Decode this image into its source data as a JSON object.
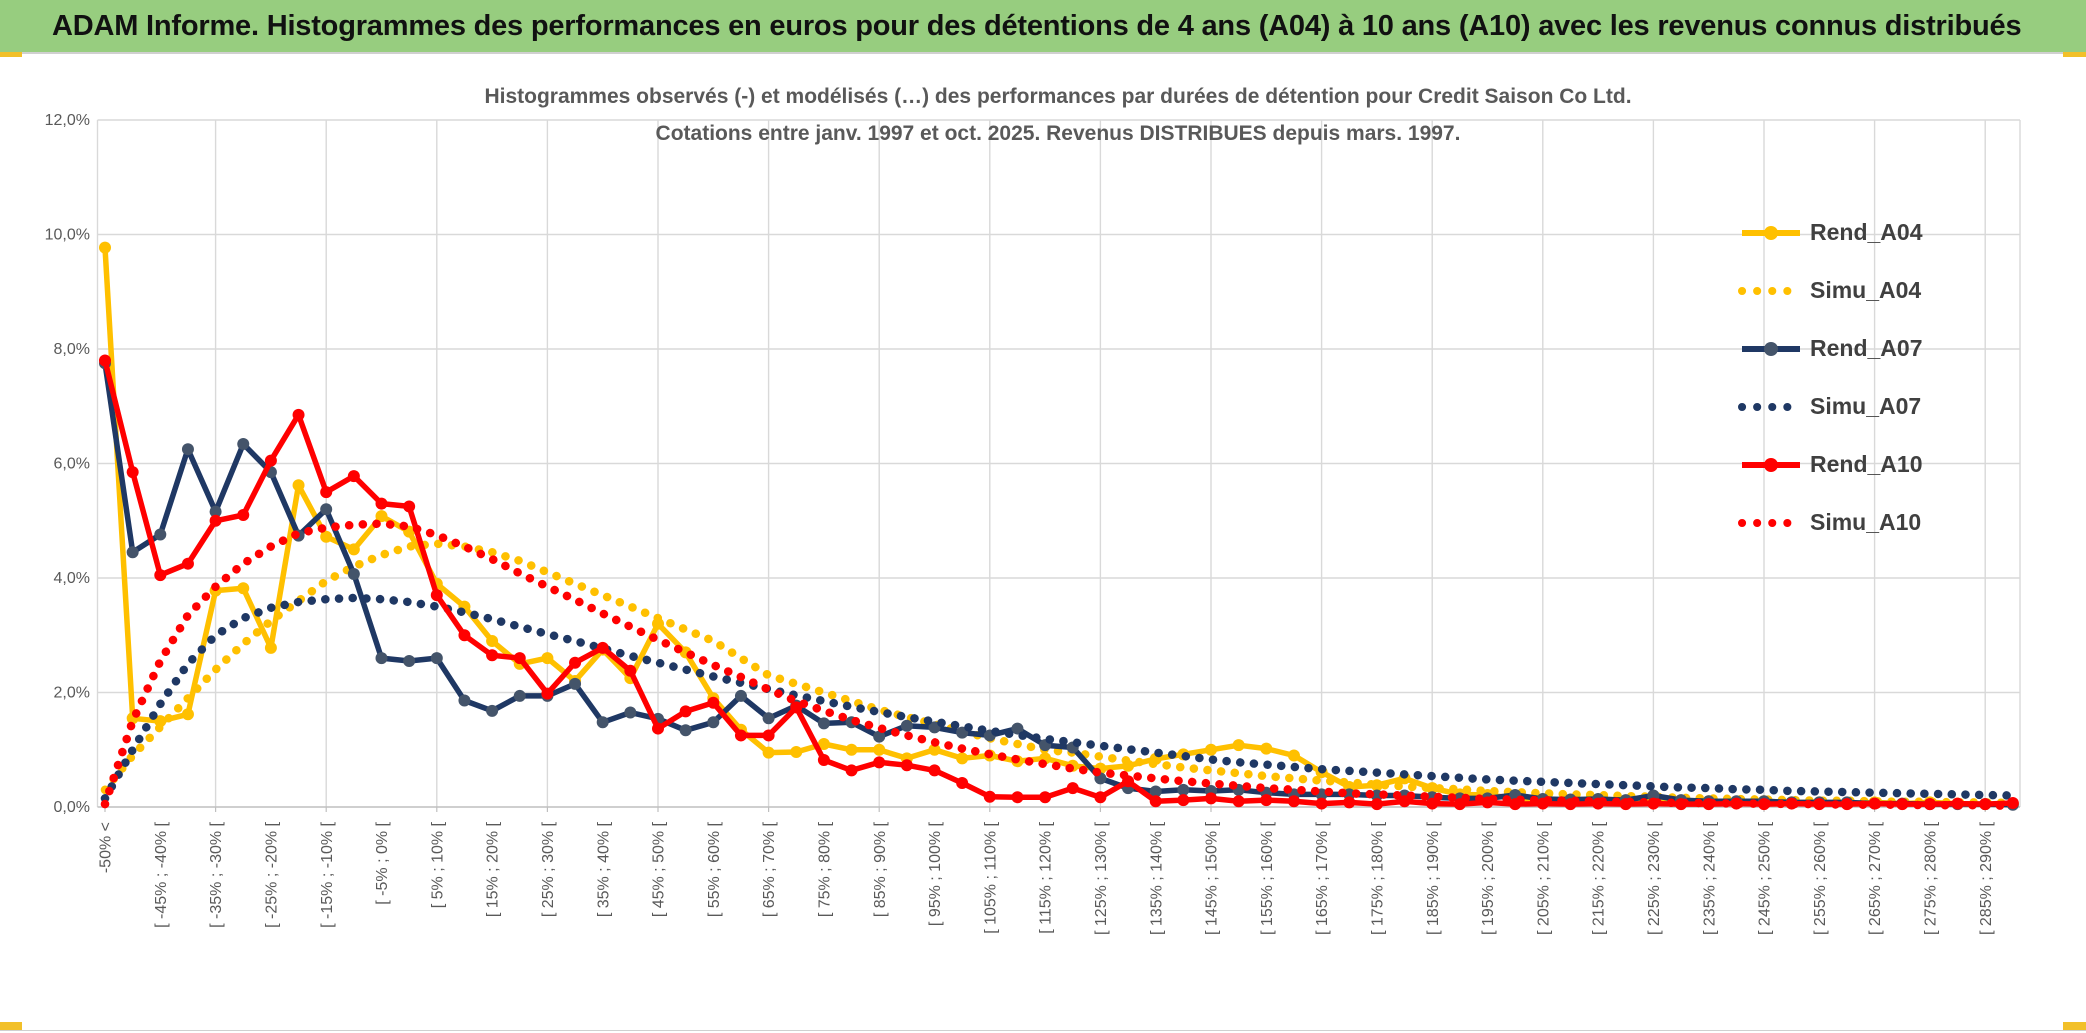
{
  "header": {
    "title": "ADAM Informe. Histogrammes des performances en euros pour des détentions de 4 ans (A04) à 10 ans (A10) avec les revenus connus distribués",
    "bar_color": "#97CD7F",
    "accent_color": "#F2C029"
  },
  "chart_data": {
    "type": "line",
    "title": "Histogrammes observés (-) et modélisés (…) des performances par durées de détention pour Credit Saison Co Ltd. Cotations entre janv. 1997 et oct. 2025. Revenus DISTRIBUES depuis mars. 1997.",
    "title_lines": [
      "Histogrammes observés (-) et modélisés (…) des performances par durées de détention pour Credit Saison Co Ltd.",
      "Cotations entre janv. 1997 et oct. 2025. Revenus DISTRIBUES depuis mars. 1997."
    ],
    "xlabel": "",
    "ylabel": "",
    "ylim": [
      0,
      12
    ],
    "grid": true,
    "legend_position": "right-inside",
    "y_tick_labels": [
      "0,0%",
      "2,0%",
      "4,0%",
      "6,0%",
      "8,0%",
      "10,0%",
      "12,0%"
    ],
    "n_categories": 70,
    "x_tick_every": 2,
    "x_tick_labels": [
      "-50% <",
      "[ -45% ; -40% [",
      "[ -35% ; -30% [",
      "[ -25% ; -20% [",
      "[ -15% ; -10% [",
      "[ -5% ; 0% [",
      "[ 5% ; 10% [",
      "[ 15% ; 20% [",
      "[ 25% ; 30% [",
      "[ 35% ; 40% [",
      "[ 45% ; 50% [",
      "[ 55% ; 60% [",
      "[ 65% ; 70% [",
      "[ 75% ; 80% [",
      "[ 85% ; 90% [",
      "[ 95% ; 100% [",
      "[ 105% ; 110% [",
      "[ 115% ; 120% [",
      "[ 125% ; 130% [",
      "[ 135% ; 140% [",
      "[ 145% ; 150% [",
      "[ 155% ; 160% [",
      "[ 165% ; 170% [",
      "[ 175% ; 180% [",
      "[ 185% ; 190% [",
      "[ 195% ; 200% [",
      "[ 205% ; 210% [",
      "[ 215% ; 220% [",
      "[ 225% ; 230% [",
      "[ 235% ; 240% [",
      "[ 245% ; 250% [",
      "[ 255% ; 260% [",
      "[ 265% ; 270% [",
      "[ 275% ; 280% [",
      "[ 285% ; 290% ["
    ],
    "colors": {
      "gold": "#FFC000",
      "navy": "#1F3864",
      "navy_marker": "#44546A",
      "red": "#FF0000",
      "grid": "#D9D9D9",
      "axis": "#BFBFBF",
      "text": "#595959"
    },
    "series": [
      {
        "name": "Rend_A04",
        "style": "solid",
        "color": "#FFC000",
        "marker_color": "#FFC000",
        "values": [
          9.77,
          1.55,
          1.5,
          1.62,
          3.78,
          3.82,
          2.78,
          5.62,
          4.72,
          4.5,
          5.08,
          4.81,
          3.9,
          3.5,
          2.9,
          2.5,
          2.6,
          2.2,
          2.75,
          2.25,
          3.2,
          2.7,
          1.9,
          1.35,
          0.95,
          0.96,
          1.1,
          1.0,
          1.0,
          0.85,
          1.0,
          0.85,
          0.9,
          0.8,
          0.85,
          0.72,
          0.67,
          0.72,
          0.84,
          0.92,
          1.0,
          1.08,
          1.02,
          0.9,
          0.61,
          0.35,
          0.38,
          0.5,
          0.33,
          0.22,
          0.21,
          0.15,
          0.12,
          0.1,
          0.12,
          0.1,
          0.15,
          0.1,
          0.1,
          0.08,
          0.1,
          0.08,
          0.08,
          0.06,
          0.08,
          0.06,
          0.08,
          0.06,
          0.05,
          0.05
        ]
      },
      {
        "name": "Simu_A04",
        "style": "dotted",
        "color": "#FFC000",
        "values": [
          0.3,
          0.9,
          1.4,
          1.9,
          2.4,
          2.85,
          3.25,
          3.6,
          3.95,
          4.2,
          4.4,
          4.55,
          4.6,
          4.55,
          4.45,
          4.3,
          4.1,
          3.9,
          3.7,
          3.5,
          3.3,
          3.1,
          2.9,
          2.6,
          2.3,
          2.15,
          2.0,
          1.85,
          1.7,
          1.57,
          1.45,
          1.32,
          1.2,
          1.1,
          1.0,
          0.95,
          0.88,
          0.81,
          0.75,
          0.69,
          0.64,
          0.59,
          0.54,
          0.5,
          0.46,
          0.43,
          0.39,
          0.36,
          0.33,
          0.31,
          0.28,
          0.26,
          0.24,
          0.22,
          0.21,
          0.19,
          0.18,
          0.16,
          0.15,
          0.14,
          0.13,
          0.12,
          0.11,
          0.11,
          0.1,
          0.09,
          0.09,
          0.08,
          0.08,
          0.07
        ]
      },
      {
        "name": "Rend_A07",
        "style": "solid",
        "color": "#1F3864",
        "marker_color": "#44546A",
        "values": [
          7.75,
          4.45,
          4.76,
          6.25,
          5.16,
          6.34,
          5.85,
          4.74,
          5.2,
          4.07,
          2.6,
          2.55,
          2.6,
          1.86,
          1.68,
          1.94,
          1.94,
          2.15,
          1.48,
          1.65,
          1.54,
          1.34,
          1.48,
          1.94,
          1.55,
          1.77,
          1.46,
          1.48,
          1.23,
          1.42,
          1.39,
          1.3,
          1.25,
          1.37,
          1.08,
          1.04,
          0.5,
          0.33,
          0.27,
          0.3,
          0.28,
          0.3,
          0.25,
          0.22,
          0.22,
          0.22,
          0.2,
          0.2,
          0.17,
          0.15,
          0.15,
          0.21,
          0.14,
          0.13,
          0.14,
          0.12,
          0.2,
          0.12,
          0.1,
          0.1,
          0.1,
          0.08,
          0.08,
          0.08,
          0.06,
          0.06,
          0.05,
          0.05,
          0.05,
          0.04
        ]
      },
      {
        "name": "Simu_A07",
        "style": "dotted",
        "color": "#1F3864",
        "values": [
          0.15,
          1.0,
          1.8,
          2.5,
          3.0,
          3.3,
          3.48,
          3.58,
          3.63,
          3.65,
          3.63,
          3.58,
          3.5,
          3.4,
          3.28,
          3.15,
          3.02,
          2.9,
          2.77,
          2.64,
          2.52,
          2.4,
          2.28,
          2.17,
          2.06,
          1.95,
          1.85,
          1.75,
          1.66,
          1.57,
          1.49,
          1.41,
          1.33,
          1.26,
          1.19,
          1.13,
          1.07,
          1.01,
          0.95,
          0.89,
          0.83,
          0.78,
          0.74,
          0.7,
          0.66,
          0.63,
          0.6,
          0.57,
          0.54,
          0.51,
          0.48,
          0.46,
          0.44,
          0.42,
          0.4,
          0.38,
          0.36,
          0.34,
          0.33,
          0.31,
          0.3,
          0.28,
          0.27,
          0.26,
          0.25,
          0.24,
          0.23,
          0.22,
          0.21,
          0.2
        ]
      },
      {
        "name": "Rend_A10",
        "style": "solid",
        "color": "#FF0000",
        "marker_color": "#FF0000",
        "values": [
          7.8,
          5.85,
          4.05,
          4.25,
          5.0,
          5.1,
          6.05,
          6.85,
          5.5,
          5.78,
          5.3,
          5.25,
          3.7,
          3.0,
          2.65,
          2.6,
          1.98,
          2.52,
          2.78,
          2.38,
          1.37,
          1.67,
          1.82,
          1.25,
          1.25,
          1.74,
          0.82,
          0.64,
          0.78,
          0.73,
          0.64,
          0.42,
          0.18,
          0.17,
          0.17,
          0.33,
          0.17,
          0.45,
          0.1,
          0.12,
          0.15,
          0.1,
          0.12,
          0.1,
          0.06,
          0.08,
          0.05,
          0.1,
          0.06,
          0.05,
          0.08,
          0.05,
          0.06,
          0.05,
          0.06,
          0.05,
          0.06,
          0.05,
          0.05,
          0.06,
          0.05,
          0.06,
          0.05,
          0.05,
          0.06,
          0.05,
          0.05,
          0.06,
          0.05,
          0.07
        ]
      },
      {
        "name": "Simu_A10",
        "style": "dotted",
        "color": "#FF0000",
        "values": [
          0.05,
          1.5,
          2.55,
          3.35,
          3.85,
          4.25,
          4.55,
          4.78,
          4.88,
          4.93,
          4.95,
          4.9,
          4.75,
          4.55,
          4.33,
          4.08,
          3.85,
          3.62,
          3.38,
          3.15,
          2.92,
          2.7,
          2.48,
          2.27,
          2.05,
          1.85,
          1.68,
          1.52,
          1.38,
          1.25,
          1.13,
          1.02,
          0.92,
          0.83,
          0.75,
          0.67,
          0.6,
          0.55,
          0.5,
          0.45,
          0.41,
          0.37,
          0.33,
          0.3,
          0.27,
          0.24,
          0.22,
          0.2,
          0.18,
          0.16,
          0.14,
          0.13,
          0.12,
          0.11,
          0.1,
          0.09,
          0.08,
          0.07,
          0.07,
          0.06,
          0.06,
          0.05,
          0.05,
          0.04,
          0.04,
          0.04,
          0.03,
          0.03,
          0.03,
          0.02
        ]
      }
    ]
  }
}
